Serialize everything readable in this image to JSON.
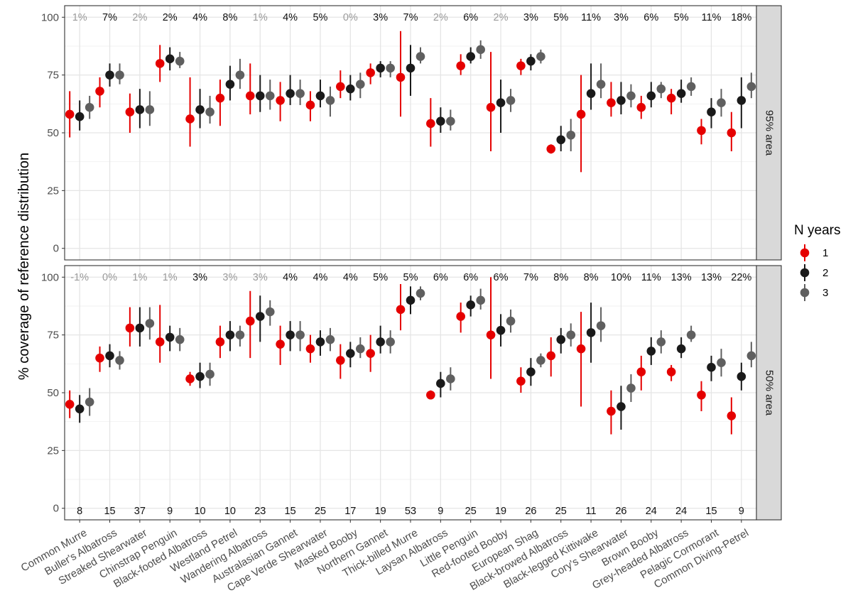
{
  "chart_data": {
    "type": "scatter",
    "ylabel": "% coverage of reference distribution",
    "legend": {
      "title": "N years",
      "position": "right",
      "entries": [
        "1",
        "2",
        "3"
      ]
    },
    "series_colors": {
      "1": "#e50000",
      "2": "#1a1a1a",
      "3": "#5f5f5f"
    },
    "ylim": [
      -5,
      105
    ],
    "yticks": [
      "0",
      "25",
      "50",
      "75",
      "100"
    ],
    "yticks_values": [
      0,
      25,
      50,
      75,
      100
    ],
    "grid": true,
    "panels": [
      {
        "strip": "95% area",
        "categories": [
          "Common Murre",
          "Buller's Albatross",
          "Streaked Shearwater",
          "Chinstrap Penguin",
          "Black-footed Albatross",
          "Westland Petrel",
          "Wandering Albatross",
          "Australasian Gannet",
          "Cape Verde Shearwater",
          "Masked Booby",
          "Northern Gannet",
          "Thick-billed Murre",
          "Laysan Albatross",
          "Little Penguin",
          "Red-footed Booby",
          "European Shag",
          "Black-browed Albatross",
          "Black-legged Kittiwake",
          "Cory's Shearwater",
          "Brown Booby",
          "Grey-headed Albatross",
          "Pelagic Cormorant",
          "Common Diving-Petrel"
        ],
        "top_labels": [
          "1%",
          "7%",
          "2%",
          "2%",
          "4%",
          "8%",
          "1%",
          "4%",
          "5%",
          "0%",
          "3%",
          "7%",
          "2%",
          "6%",
          "2%",
          "3%",
          "5%",
          "11%",
          "3%",
          "6%",
          "5%",
          "11%",
          "18%"
        ],
        "top_label_muted": [
          true,
          false,
          true,
          false,
          false,
          false,
          true,
          false,
          false,
          true,
          false,
          false,
          true,
          false,
          true,
          false,
          false,
          false,
          false,
          false,
          false,
          false,
          false
        ],
        "series": [
          {
            "name": "1",
            "values": [
              [
                58,
                48,
                68
              ],
              [
                68,
                61,
                74
              ],
              [
                59,
                50,
                67
              ],
              [
                80,
                72,
                88
              ],
              [
                56,
                44,
                74
              ],
              [
                65,
                53,
                73
              ],
              [
                66,
                58,
                80
              ],
              [
                64,
                55,
                72
              ],
              [
                62,
                55,
                68
              ],
              [
                70,
                65,
                77
              ],
              [
                76,
                71,
                80
              ],
              [
                74,
                57,
                94
              ],
              [
                54,
                44,
                65
              ],
              [
                79,
                75,
                84
              ],
              [
                61,
                42,
                85
              ],
              [
                79,
                75,
                82
              ],
              [
                43,
                41,
                45
              ],
              [
                58,
                33,
                75
              ],
              [
                63,
                57,
                72
              ],
              [
                61,
                56,
                66
              ],
              [
                65,
                58,
                69
              ],
              [
                51,
                45,
                56
              ],
              [
                50,
                42,
                59
              ]
            ]
          },
          {
            "name": "2",
            "values": [
              [
                57,
                51,
                64
              ],
              [
                75,
                70,
                80
              ],
              [
                60,
                52,
                69
              ],
              [
                82,
                77,
                87
              ],
              [
                60,
                52,
                69
              ],
              [
                71,
                64,
                79
              ],
              [
                66,
                59,
                75
              ],
              [
                67,
                62,
                75
              ],
              [
                66,
                61,
                73
              ],
              [
                69,
                64,
                75
              ],
              [
                78,
                74,
                81
              ],
              [
                78,
                66,
                88
              ],
              [
                55,
                50,
                61
              ],
              [
                83,
                80,
                87
              ],
              [
                63,
                50,
                73
              ],
              [
                81,
                77,
                84
              ],
              [
                47,
                42,
                53
              ],
              [
                67,
                60,
                80
              ],
              [
                64,
                58,
                72
              ],
              [
                66,
                61,
                72
              ],
              [
                67,
                63,
                73
              ],
              [
                59,
                52,
                65
              ],
              [
                64,
                52,
                74
              ]
            ]
          },
          {
            "name": "3",
            "values": [
              [
                61,
                56,
                66
              ],
              [
                75,
                71,
                80
              ],
              [
                60,
                53,
                68
              ],
              [
                81,
                78,
                85
              ],
              [
                59,
                54,
                66
              ],
              [
                75,
                69,
                82
              ],
              [
                66,
                60,
                73
              ],
              [
                67,
                62,
                73
              ],
              [
                64,
                57,
                70
              ],
              [
                71,
                65,
                76
              ],
              [
                78,
                74,
                81
              ],
              [
                83,
                80,
                87
              ],
              [
                55,
                51,
                60
              ],
              [
                86,
                82,
                90
              ],
              [
                64,
                59,
                69
              ],
              [
                83,
                80,
                86
              ],
              [
                49,
                42,
                56
              ],
              [
                71,
                65,
                80
              ],
              [
                66,
                61,
                71
              ],
              [
                69,
                65,
                72
              ],
              [
                70,
                66,
                74
              ],
              [
                63,
                57,
                69
              ],
              [
                70,
                65,
                76
              ]
            ]
          }
        ]
      },
      {
        "strip": "50% area",
        "categories": [
          "Common Murre",
          "Buller's Albatross",
          "Streaked Shearwater",
          "Chinstrap Penguin",
          "Black-footed Albatross",
          "Westland Petrel",
          "Wandering Albatross",
          "Australasian Gannet",
          "Cape Verde Shearwater",
          "Masked Booby",
          "Northern Gannet",
          "Thick-billed Murre",
          "Laysan Albatross",
          "Little Penguin",
          "Red-footed Booby",
          "European Shag",
          "Black-browed Albatross",
          "Black-legged Kittiwake",
          "Cory's Shearwater",
          "Brown Booby",
          "Grey-headed Albatross",
          "Pelagic Cormorant",
          "Common Diving-Petrel"
        ],
        "top_labels": [
          "-1%",
          "0%",
          "1%",
          "1%",
          "3%",
          "3%",
          "3%",
          "4%",
          "4%",
          "4%",
          "5%",
          "5%",
          "6%",
          "6%",
          "6%",
          "7%",
          "8%",
          "8%",
          "10%",
          "11%",
          "13%",
          "13%",
          "22%"
        ],
        "top_label_muted": [
          true,
          true,
          true,
          true,
          false,
          true,
          true,
          false,
          false,
          false,
          false,
          false,
          false,
          false,
          false,
          false,
          false,
          false,
          false,
          false,
          false,
          false,
          false
        ],
        "bottom_labels": [
          "8",
          "15",
          "37",
          "9",
          "10",
          "10",
          "23",
          "15",
          "25",
          "17",
          "19",
          "53",
          "9",
          "25",
          "19",
          "26",
          "25",
          "11",
          "26",
          "24",
          "24",
          "15",
          "9"
        ],
        "series": [
          {
            "name": "1",
            "values": [
              [
                45,
                39,
                51
              ],
              [
                65,
                59,
                70
              ],
              [
                78,
                70,
                87
              ],
              [
                72,
                63,
                88
              ],
              [
                56,
                53,
                59
              ],
              [
                72,
                65,
                79
              ],
              [
                81,
                65,
                94
              ],
              [
                71,
                62,
                79
              ],
              [
                69,
                63,
                75
              ],
              [
                64,
                56,
                71
              ],
              [
                67,
                59,
                75
              ],
              [
                86,
                77,
                97
              ],
              [
                49,
                48,
                51
              ],
              [
                83,
                76,
                89
              ],
              [
                75,
                56,
                100
              ],
              [
                55,
                50,
                61
              ],
              [
                66,
                57,
                74
              ],
              [
                69,
                44,
                85
              ],
              [
                42,
                32,
                51
              ],
              [
                59,
                51,
                66
              ],
              [
                59,
                55,
                62
              ],
              [
                49,
                42,
                55
              ],
              [
                40,
                32,
                48
              ]
            ]
          },
          {
            "name": "2",
            "values": [
              [
                43,
                37,
                49
              ],
              [
                66,
                61,
                71
              ],
              [
                78,
                70,
                87
              ],
              [
                74,
                68,
                79
              ],
              [
                57,
                52,
                63
              ],
              [
                75,
                68,
                81
              ],
              [
                83,
                72,
                92
              ],
              [
                75,
                68,
                81
              ],
              [
                72,
                66,
                77
              ],
              [
                67,
                61,
                72
              ],
              [
                72,
                67,
                79
              ],
              [
                90,
                84,
                96
              ],
              [
                54,
                48,
                59
              ],
              [
                88,
                83,
                92
              ],
              [
                77,
                70,
                84
              ],
              [
                59,
                53,
                65
              ],
              [
                73,
                67,
                78
              ],
              [
                76,
                63,
                89
              ],
              [
                44,
                34,
                53
              ],
              [
                68,
                62,
                74
              ],
              [
                69,
                65,
                74
              ],
              [
                61,
                55,
                66
              ],
              [
                57,
                51,
                63
              ]
            ]
          },
          {
            "name": "3",
            "values": [
              [
                46,
                40,
                52
              ],
              [
                64,
                60,
                68
              ],
              [
                80,
                73,
                87
              ],
              [
                73,
                68,
                78
              ],
              [
                58,
                53,
                63
              ],
              [
                75,
                70,
                79
              ],
              [
                85,
                79,
                90
              ],
              [
                75,
                68,
                81
              ],
              [
                73,
                68,
                78
              ],
              [
                69,
                65,
                74
              ],
              [
                72,
                67,
                77
              ],
              [
                93,
                90,
                96
              ],
              [
                56,
                51,
                61
              ],
              [
                90,
                86,
                95
              ],
              [
                81,
                76,
                86
              ],
              [
                64,
                61,
                67
              ],
              [
                75,
                70,
                80
              ],
              [
                79,
                72,
                87
              ],
              [
                52,
                46,
                58
              ],
              [
                72,
                67,
                77
              ],
              [
                75,
                72,
                79
              ],
              [
                63,
                57,
                69
              ],
              [
                66,
                61,
                72
              ]
            ]
          }
        ]
      }
    ]
  }
}
